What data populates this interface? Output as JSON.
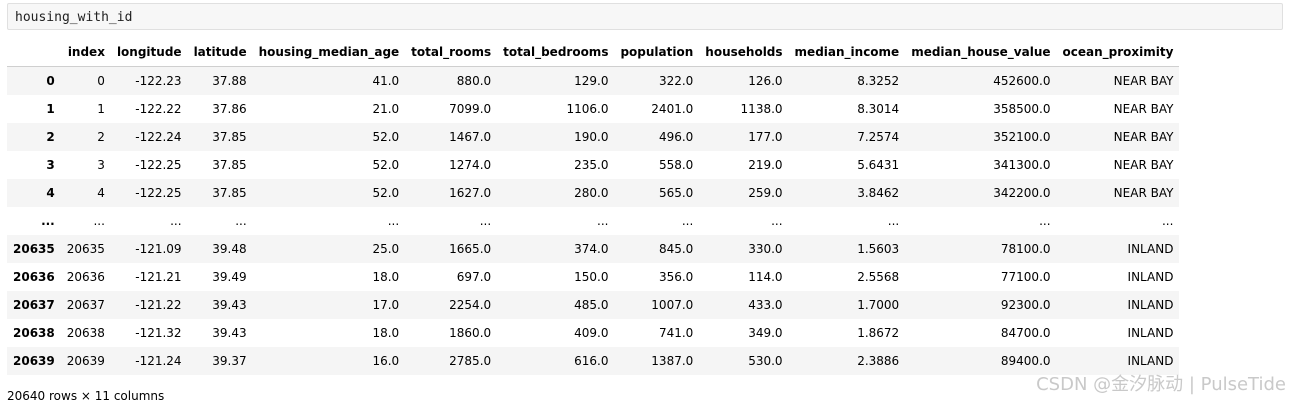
{
  "input": {
    "code": "housing_with_id"
  },
  "table": {
    "columns": [
      "",
      "index",
      "longitude",
      "latitude",
      "housing_median_age",
      "total_rooms",
      "total_bedrooms",
      "population",
      "households",
      "median_income",
      "median_house_value",
      "ocean_proximity"
    ],
    "rows": [
      [
        "0",
        "0",
        "-122.23",
        "37.88",
        "41.0",
        "880.0",
        "129.0",
        "322.0",
        "126.0",
        "8.3252",
        "452600.0",
        "NEAR BAY"
      ],
      [
        "1",
        "1",
        "-122.22",
        "37.86",
        "21.0",
        "7099.0",
        "1106.0",
        "2401.0",
        "1138.0",
        "8.3014",
        "358500.0",
        "NEAR BAY"
      ],
      [
        "2",
        "2",
        "-122.24",
        "37.85",
        "52.0",
        "1467.0",
        "190.0",
        "496.0",
        "177.0",
        "7.2574",
        "352100.0",
        "NEAR BAY"
      ],
      [
        "3",
        "3",
        "-122.25",
        "37.85",
        "52.0",
        "1274.0",
        "235.0",
        "558.0",
        "219.0",
        "5.6431",
        "341300.0",
        "NEAR BAY"
      ],
      [
        "4",
        "4",
        "-122.25",
        "37.85",
        "52.0",
        "1627.0",
        "280.0",
        "565.0",
        "259.0",
        "3.8462",
        "342200.0",
        "NEAR BAY"
      ],
      [
        "...",
        "...",
        "...",
        "...",
        "...",
        "...",
        "...",
        "...",
        "...",
        "...",
        "...",
        "..."
      ],
      [
        "20635",
        "20635",
        "-121.09",
        "39.48",
        "25.0",
        "1665.0",
        "374.0",
        "845.0",
        "330.0",
        "1.5603",
        "78100.0",
        "INLAND"
      ],
      [
        "20636",
        "20636",
        "-121.21",
        "39.49",
        "18.0",
        "697.0",
        "150.0",
        "356.0",
        "114.0",
        "2.5568",
        "77100.0",
        "INLAND"
      ],
      [
        "20637",
        "20637",
        "-121.22",
        "39.43",
        "17.0",
        "2254.0",
        "485.0",
        "1007.0",
        "433.0",
        "1.7000",
        "92300.0",
        "INLAND"
      ],
      [
        "20638",
        "20638",
        "-121.32",
        "39.43",
        "18.0",
        "1860.0",
        "409.0",
        "741.0",
        "349.0",
        "1.8672",
        "84700.0",
        "INLAND"
      ],
      [
        "20639",
        "20639",
        "-121.24",
        "39.37",
        "16.0",
        "2785.0",
        "616.0",
        "1387.0",
        "530.0",
        "2.3886",
        "89400.0",
        "INLAND"
      ]
    ]
  },
  "footer": {
    "shape": "20640 rows × 11 columns"
  },
  "watermark": {
    "text": "CSDN @金汐脉动 | PulseTide"
  }
}
